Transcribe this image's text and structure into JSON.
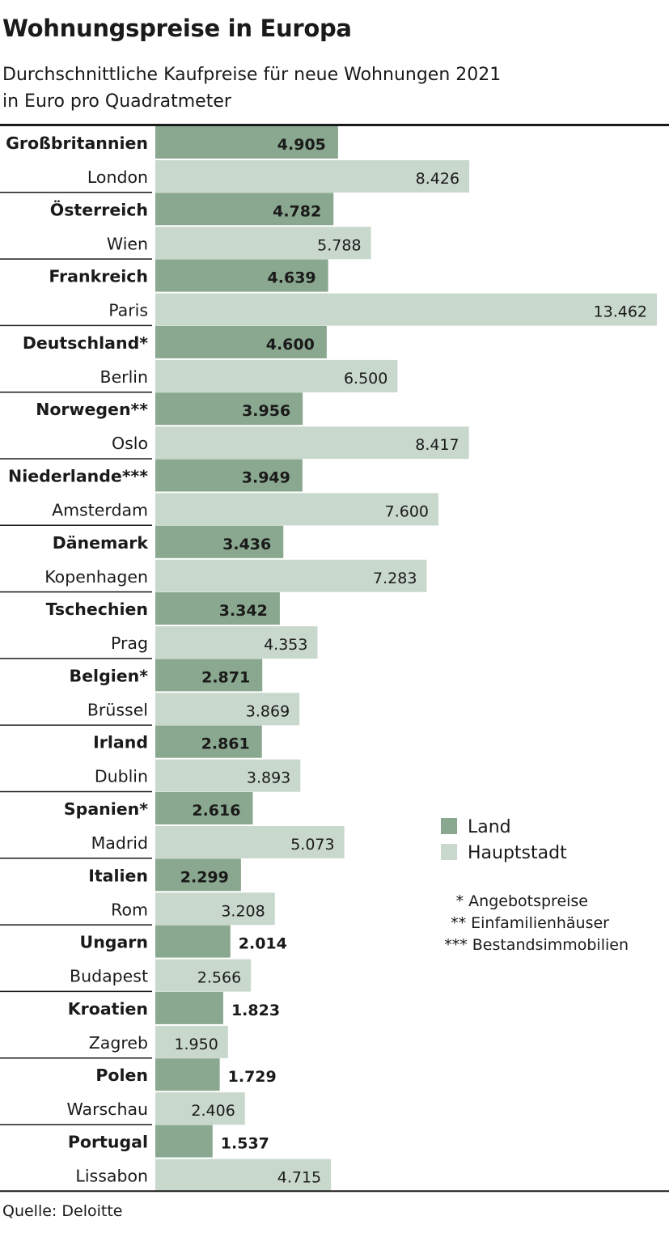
{
  "header": {
    "title": "Wohnungspreise in Europa",
    "subtitle_line1": "Durchschnittliche Kaufpreise für neue Wohnungen 2021",
    "subtitle_line2": "in Euro pro Quadratmeter"
  },
  "colors": {
    "land": "#8aa88f",
    "hauptstadt": "#c9d8cc",
    "rule": "#1a1a1a"
  },
  "legend": {
    "land": "Land",
    "hauptstadt": "Hauptstadt"
  },
  "footnotes": [
    "* Angebotspreise",
    "** Einfamilienhäuser",
    "*** Bestandsimmobilien"
  ],
  "source": "Quelle: Deloitte",
  "chart_data": {
    "type": "bar",
    "orientation": "horizontal",
    "grid": false,
    "legend_position": "right",
    "series": [
      {
        "name": "Land",
        "values": [
          4905,
          4782,
          4639,
          4600,
          3956,
          3949,
          3436,
          3342,
          2871,
          2861,
          2616,
          2299,
          2014,
          1823,
          1729,
          1537
        ]
      },
      {
        "name": "Hauptstadt",
        "values": [
          8426,
          5788,
          13462,
          6500,
          8417,
          7600,
          7283,
          4353,
          3869,
          3893,
          5073,
          3208,
          2566,
          1950,
          2406,
          4715
        ]
      }
    ],
    "groups": [
      {
        "country": "Großbritannien",
        "country_value": 4905,
        "country_value_label": "4.905",
        "capital": "London",
        "capital_value": 8426,
        "capital_value_label": "8.426"
      },
      {
        "country": "Österreich",
        "country_value": 4782,
        "country_value_label": "4.782",
        "capital": "Wien",
        "capital_value": 5788,
        "capital_value_label": "5.788"
      },
      {
        "country": "Frankreich",
        "country_value": 4639,
        "country_value_label": "4.639",
        "capital": "Paris",
        "capital_value": 13462,
        "capital_value_label": "13.462"
      },
      {
        "country": "Deutschland*",
        "country_value": 4600,
        "country_value_label": "4.600",
        "capital": "Berlin",
        "capital_value": 6500,
        "capital_value_label": "6.500"
      },
      {
        "country": "Norwegen**",
        "country_value": 3956,
        "country_value_label": "3.956",
        "capital": "Oslo",
        "capital_value": 8417,
        "capital_value_label": "8.417"
      },
      {
        "country": "Niederlande***",
        "country_value": 3949,
        "country_value_label": "3.949",
        "capital": "Amsterdam",
        "capital_value": 7600,
        "capital_value_label": "7.600"
      },
      {
        "country": "Dänemark",
        "country_value": 3436,
        "country_value_label": "3.436",
        "capital": "Kopenhagen",
        "capital_value": 7283,
        "capital_value_label": "7.283"
      },
      {
        "country": "Tschechien",
        "country_value": 3342,
        "country_value_label": "3.342",
        "capital": "Prag",
        "capital_value": 4353,
        "capital_value_label": "4.353"
      },
      {
        "country": "Belgien*",
        "country_value": 2871,
        "country_value_label": "2.871",
        "capital": "Brüssel",
        "capital_value": 3869,
        "capital_value_label": "3.869"
      },
      {
        "country": "Irland",
        "country_value": 2861,
        "country_value_label": "2.861",
        "capital": "Dublin",
        "capital_value": 3893,
        "capital_value_label": "3.893"
      },
      {
        "country": "Spanien*",
        "country_value": 2616,
        "country_value_label": "2.616",
        "capital": "Madrid",
        "capital_value": 5073,
        "capital_value_label": "5.073"
      },
      {
        "country": "Italien",
        "country_value": 2299,
        "country_value_label": "2.299",
        "capital": "Rom",
        "capital_value": 3208,
        "capital_value_label": "3.208"
      },
      {
        "country": "Ungarn",
        "country_value": 2014,
        "country_value_label": "2.014",
        "capital": "Budapest",
        "capital_value": 2566,
        "capital_value_label": "2.566"
      },
      {
        "country": "Kroatien",
        "country_value": 1823,
        "country_value_label": "1.823",
        "capital": "Zagreb",
        "capital_value": 1950,
        "capital_value_label": "1.950"
      },
      {
        "country": "Polen",
        "country_value": 1729,
        "country_value_label": "1.729",
        "capital": "Warschau",
        "capital_value": 2406,
        "capital_value_label": "2.406"
      },
      {
        "country": "Portugal",
        "country_value": 1537,
        "country_value_label": "1.537",
        "capital": "Lissabon",
        "capital_value": 4715,
        "capital_value_label": "4.715"
      }
    ]
  }
}
